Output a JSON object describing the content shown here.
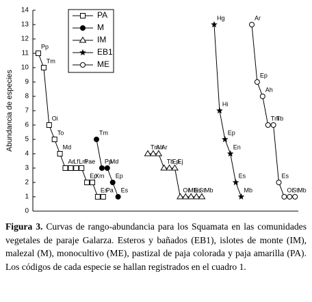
{
  "chart_data": {
    "type": "rank-abundance",
    "y_label": "Abundancia de especies",
    "ylim": [
      0,
      14
    ],
    "yticks": [
      0,
      1,
      2,
      3,
      4,
      5,
      6,
      7,
      8,
      9,
      10,
      11,
      12,
      13,
      14
    ],
    "series": [
      {
        "name": "PA",
        "marker": "square",
        "values": [
          11,
          10,
          6,
          5,
          4,
          3,
          3,
          3,
          3,
          2,
          2,
          1,
          1
        ],
        "labels": [
          "Pp",
          "Tm",
          "Oi",
          "To",
          "Md",
          "Ar",
          "Lf",
          "Lm",
          "Pae",
          "Ep",
          "Xm",
          "Es",
          "Pa"
        ]
      },
      {
        "name": "M",
        "marker": "circle-filled",
        "values": [
          5,
          3,
          3,
          2,
          1
        ],
        "labels": [
          "Tm",
          "Pp",
          "Md",
          "Ep",
          "Es"
        ]
      },
      {
        "name": "IM",
        "marker": "triangle",
        "values": [
          4,
          4,
          4,
          3,
          3,
          3,
          1,
          1,
          1,
          1,
          1
        ],
        "labels": [
          "Tm",
          "Ah",
          "Ar",
          "Tb",
          "Ep",
          "Ej",
          "Oi",
          "Mbi",
          "Es",
          "St",
          "Mb"
        ]
      },
      {
        "name": "EB1",
        "marker": "star",
        "values": [
          13,
          7,
          5,
          4,
          2,
          1
        ],
        "labels": [
          "Hg",
          "Hi",
          "Ep",
          "En",
          "Es",
          "Mb"
        ]
      },
      {
        "name": "ME",
        "marker": "circle",
        "values": [
          13,
          9,
          8,
          6,
          6,
          2,
          1,
          1,
          1
        ],
        "labels": [
          "Ar",
          "Ep",
          "Ah",
          "Tm",
          "Tb",
          "Es",
          "Oi",
          "St",
          "Mb"
        ]
      }
    ]
  },
  "caption": {
    "label": "Figura 3.",
    "text": "Curvas de rango-abundancia para los Squamata en las comunidades vegetales de paraje Galarza. Esteros y bañados (EB1), islotes de monte (IM), malezal (M), monocultivo (ME), pastizal de paja colorada y paja amarilla (PA). Los códigos de cada especie se hallan registrados en el cuadro 1."
  }
}
